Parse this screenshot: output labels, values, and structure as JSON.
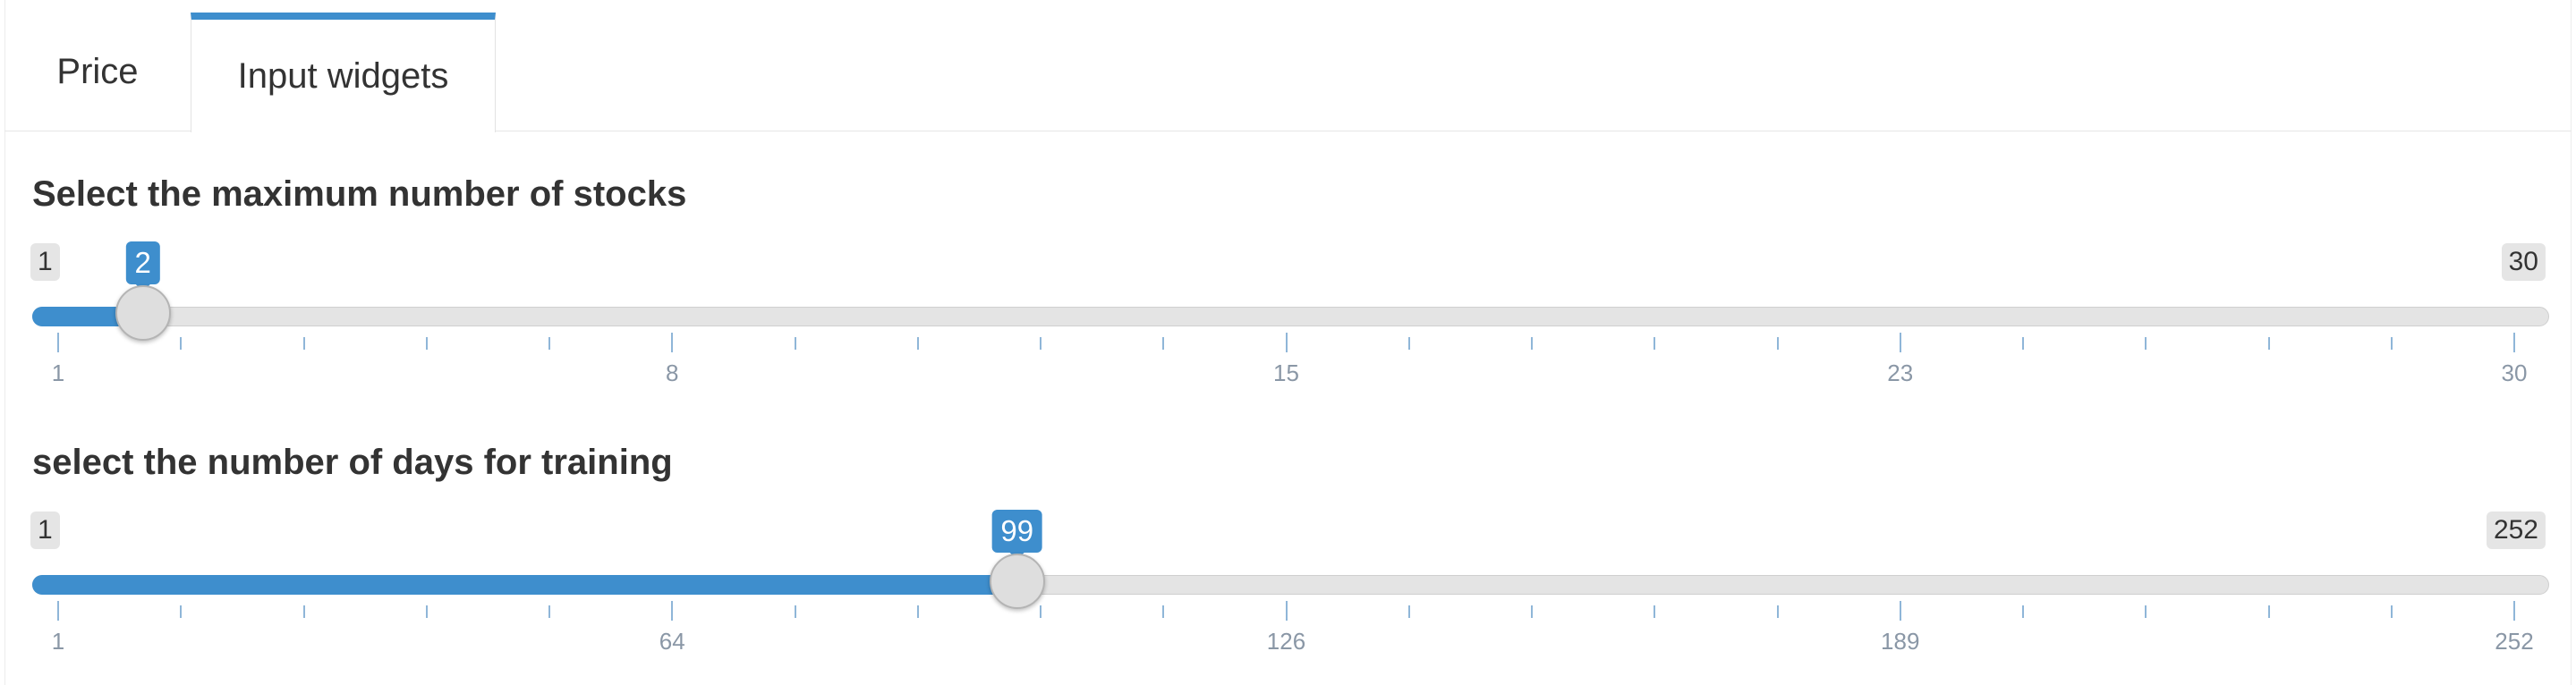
{
  "tabs": [
    {
      "label": "Price",
      "active": false
    },
    {
      "label": "Input widgets",
      "active": true
    }
  ],
  "colors": {
    "accent": "#3e8ecd"
  },
  "slider_stocks": {
    "label": "Select the maximum number of stocks",
    "min": 1,
    "max": 30,
    "value": 2,
    "min_label": "1",
    "max_label": "30",
    "value_label": "2",
    "tick_labels": [
      "1",
      "8",
      "15",
      "23",
      "30"
    ]
  },
  "slider_days": {
    "label": "select the number of days for training",
    "min": 1,
    "max": 252,
    "value": 99,
    "min_label": "1",
    "max_label": "252",
    "value_label": "99",
    "tick_labels": [
      "1",
      "64",
      "126",
      "189",
      "252"
    ]
  }
}
